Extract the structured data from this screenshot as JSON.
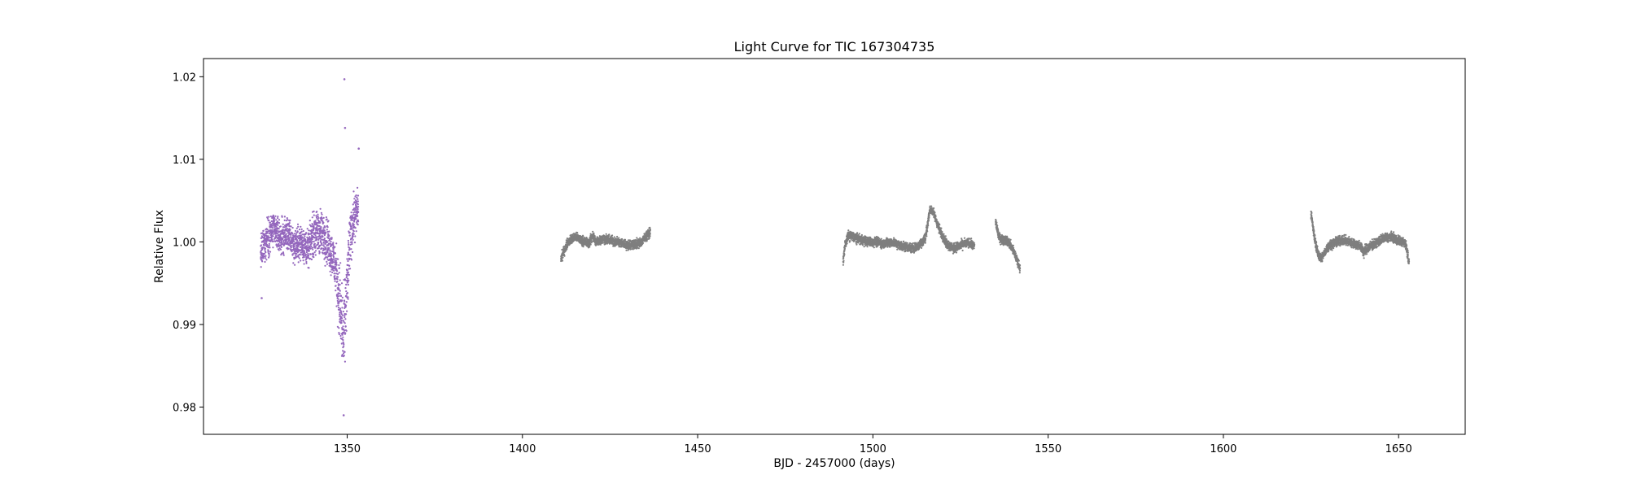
{
  "chart_data": {
    "type": "scatter",
    "title": "Light Curve for TIC 167304735",
    "xlabel": "BJD - 2457000 (days)",
    "ylabel": "Relative Flux",
    "xlim": [
      1309,
      1669
    ],
    "ylim": [
      0.9767,
      1.0222
    ],
    "xticks": [
      1350,
      1400,
      1450,
      1500,
      1550,
      1600,
      1650
    ],
    "yticks": [
      0.98,
      0.99,
      1.0,
      1.01,
      1.02
    ],
    "ytick_labels": [
      "0.98",
      "0.99",
      "1.00",
      "1.01",
      "1.02"
    ],
    "grid": false,
    "legend": "none",
    "colors": {
      "highlight": "#9467bd",
      "other": "#7f7f7f"
    },
    "series": [
      {
        "color": "#9467bd",
        "x": [
          1325.3,
          1327,
          1329,
          1331,
          1333,
          1335,
          1337,
          1339,
          1340,
          1342,
          1344,
          1346,
          1347,
          1348,
          1349,
          1350,
          1351,
          1352,
          1353.2
        ],
        "y": [
          0.9985,
          1.0005,
          1.0015,
          1.0005,
          1.001,
          0.9995,
          1.0,
          0.999,
          1.0008,
          1.0012,
          1.0005,
          0.998,
          0.996,
          0.992,
          0.988,
          0.995,
          1.001,
          1.003,
          1.004
        ],
        "spread": [
          0.003,
          0.0035,
          0.003,
          0.003,
          0.003,
          0.003,
          0.003,
          0.003,
          0.0035,
          0.004,
          0.004,
          0.004,
          0.005,
          0.007,
          0.008,
          0.006,
          0.005,
          0.004,
          0.0035
        ],
        "outliers": [
          [
            1349.2,
            1.0197
          ],
          [
            1349.0,
            0.979
          ],
          [
            1349.4,
            1.0138
          ],
          [
            1353.3,
            1.0113
          ],
          [
            1325.6,
            0.9932
          ]
        ]
      },
      {
        "color": "#7f7f7f",
        "x": [
          1411,
          1412,
          1413,
          1415,
          1417,
          1419,
          1420,
          1421,
          1423,
          1425,
          1427,
          1429,
          1430,
          1432,
          1434,
          1435,
          1436.5
        ],
        "y": [
          0.998,
          0.999,
          1.0,
          1.0006,
          1.0002,
          0.9998,
          1.0008,
          1.0,
          1.0004,
          1.0002,
          1.0,
          0.9998,
          0.9996,
          0.9997,
          1.0,
          1.0006,
          1.0012
        ],
        "spread": [
          0.001,
          0.0008,
          0.0008,
          0.0008,
          0.0008,
          0.0008,
          0.001,
          0.0008,
          0.0008,
          0.0008,
          0.0008,
          0.0008,
          0.0008,
          0.0008,
          0.0008,
          0.0008,
          0.0008
        ]
      },
      {
        "color": "#7f7f7f",
        "x": [
          1491.5,
          1492,
          1493,
          1495,
          1497,
          1499,
          1501,
          1503,
          1505,
          1507,
          1509,
          1511,
          1513,
          1515,
          1516.3,
          1517.3,
          1519,
          1521,
          1523,
          1525,
          1527,
          1529
        ],
        "y": [
          0.9975,
          0.9995,
          1.0008,
          1.0005,
          1.0002,
          1.0,
          1.0,
          0.9998,
          1.0,
          0.9997,
          0.9995,
          0.9992,
          0.9995,
          1.0005,
          1.004,
          1.0035,
          1.0015,
          0.9998,
          0.9992,
          0.9996,
          0.9999,
          0.9995
        ],
        "spread": [
          0.0012,
          0.0008,
          0.0008,
          0.0008,
          0.0008,
          0.0008,
          0.0008,
          0.0008,
          0.0008,
          0.0008,
          0.0008,
          0.0008,
          0.0008,
          0.001,
          0.0006,
          0.0008,
          0.0008,
          0.0008,
          0.0008,
          0.0008,
          0.0008,
          0.0008
        ]
      },
      {
        "color": "#7f7f7f",
        "x": [
          1535,
          1536,
          1537,
          1538,
          1539,
          1540,
          1541,
          1542
        ],
        "y": [
          1.0025,
          1.0005,
          1.0003,
          1.0002,
          0.9998,
          0.999,
          0.998,
          0.9968
        ],
        "spread": [
          0.0008,
          0.0008,
          0.0008,
          0.0008,
          0.0008,
          0.0008,
          0.0008,
          0.0008
        ]
      },
      {
        "color": "#7f7f7f",
        "x": [
          1625,
          1626,
          1627,
          1628,
          1629,
          1630,
          1632,
          1634,
          1636,
          1637,
          1639,
          1640,
          1642,
          1644,
          1646,
          1648,
          1650,
          1652,
          1653
        ],
        "y": [
          1.0035,
          1.0005,
          0.9985,
          0.998,
          0.9988,
          0.9995,
          1.0,
          1.0002,
          1.0,
          0.9998,
          0.9996,
          0.9988,
          0.9995,
          1.0,
          1.0005,
          1.0006,
          1.0002,
          0.9998,
          0.9975
        ],
        "spread": [
          0.0008,
          0.0008,
          0.0008,
          0.0008,
          0.0008,
          0.0008,
          0.0008,
          0.0008,
          0.0008,
          0.0008,
          0.0008,
          0.001,
          0.0008,
          0.0008,
          0.0008,
          0.0008,
          0.0008,
          0.0008,
          0.001
        ]
      }
    ]
  }
}
